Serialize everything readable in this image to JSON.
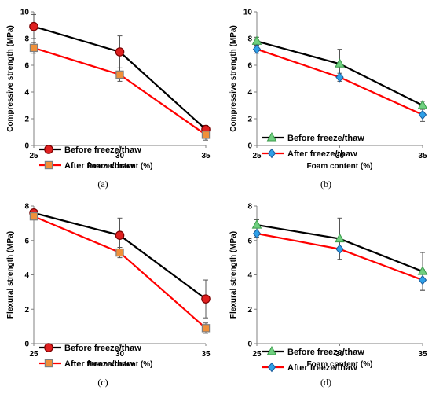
{
  "chart_data": [
    {
      "panel": "(a)",
      "type": "line",
      "x": [
        25,
        30,
        35
      ],
      "xlabel": "Foam content (%)",
      "ylabel": "Compressive strength (MPa)",
      "xlim": [
        25,
        35
      ],
      "ylim": [
        0,
        10
      ],
      "yticks": [
        0,
        2,
        4,
        6,
        8,
        10
      ],
      "xticks": [
        25,
        30,
        35
      ],
      "legend": "bottom-left",
      "series": [
        {
          "name": "Before freeze/thaw",
          "values": [
            8.9,
            7.0,
            1.2
          ],
          "errors": [
            0.9,
            1.2,
            0.3
          ],
          "color": "#000000",
          "marker": "circle",
          "marker_fill": "#e02020",
          "marker_stroke": "#7a0000"
        },
        {
          "name": "After freeze/thaw",
          "values": [
            7.3,
            5.3,
            0.8
          ],
          "errors": [
            0.4,
            0.5,
            0.4
          ],
          "color": "#ff0000",
          "marker": "square",
          "marker_fill": "#f0903a",
          "marker_stroke": "#7f7f7f"
        }
      ]
    },
    {
      "panel": "(b)",
      "type": "line",
      "x": [
        25,
        30,
        35
      ],
      "xlabel": "Foam content (%)",
      "ylabel": "Compressive strength (MPa)",
      "xlim": [
        25,
        35
      ],
      "ylim": [
        0,
        10
      ],
      "yticks": [
        0,
        2,
        4,
        6,
        8,
        10
      ],
      "xticks": [
        25,
        30,
        35
      ],
      "legend": "bottom-left",
      "series": [
        {
          "name": "Before freeze/thaw",
          "values": [
            7.8,
            6.1,
            3.0
          ],
          "errors": [
            0.3,
            1.1,
            0.3
          ],
          "color": "#000000",
          "marker": "triangle",
          "marker_fill": "#70d080",
          "marker_stroke": "#3a9a4a"
        },
        {
          "name": "After freeze/thaw",
          "values": [
            7.2,
            5.1,
            2.3
          ],
          "errors": [
            0.3,
            0.3,
            0.5
          ],
          "color": "#ff0000",
          "marker": "diamond",
          "marker_fill": "#2ea0e8",
          "marker_stroke": "#1a5a9a"
        }
      ]
    },
    {
      "panel": "(c)",
      "type": "line",
      "x": [
        25,
        30,
        35
      ],
      "xlabel": "Foam content (%)",
      "ylabel": "Flexural strength (MPa)",
      "xlim": [
        25,
        35
      ],
      "ylim": [
        0,
        8
      ],
      "yticks": [
        0,
        2,
        4,
        6,
        8
      ],
      "xticks": [
        25,
        30,
        35
      ],
      "legend": "bottom-left",
      "series": [
        {
          "name": "Before freeze/thaw",
          "values": [
            7.6,
            6.3,
            2.6
          ],
          "errors": [
            0.2,
            1.0,
            1.1
          ],
          "color": "#000000",
          "marker": "circle",
          "marker_fill": "#e02020",
          "marker_stroke": "#7a0000"
        },
        {
          "name": "After freeze/thaw",
          "values": [
            7.4,
            5.3,
            0.9
          ],
          "errors": [
            0.2,
            0.3,
            0.3
          ],
          "color": "#ff0000",
          "marker": "square",
          "marker_fill": "#f0903a",
          "marker_stroke": "#7f7f7f"
        }
      ]
    },
    {
      "panel": "(d)",
      "type": "line",
      "x": [
        25,
        30,
        35
      ],
      "xlabel": "Foam content (%)",
      "ylabel": "Flexural strength (MPa)",
      "xlim": [
        25,
        35
      ],
      "ylim": [
        0,
        8
      ],
      "yticks": [
        0,
        2,
        4,
        6,
        8
      ],
      "xticks": [
        25,
        30,
        35
      ],
      "legend": "bottom-left",
      "series": [
        {
          "name": "Before freeze/thaw",
          "values": [
            6.9,
            6.1,
            4.2
          ],
          "errors": [
            0.3,
            1.2,
            1.1
          ],
          "color": "#000000",
          "marker": "triangle",
          "marker_fill": "#70d080",
          "marker_stroke": "#3a9a4a"
        },
        {
          "name": "After freeze/thaw",
          "values": [
            6.4,
            5.5,
            3.7
          ],
          "errors": [
            0.2,
            0.6,
            0.6
          ],
          "color": "#ff0000",
          "marker": "diamond",
          "marker_fill": "#2ea0e8",
          "marker_stroke": "#1a5a9a"
        }
      ]
    }
  ]
}
